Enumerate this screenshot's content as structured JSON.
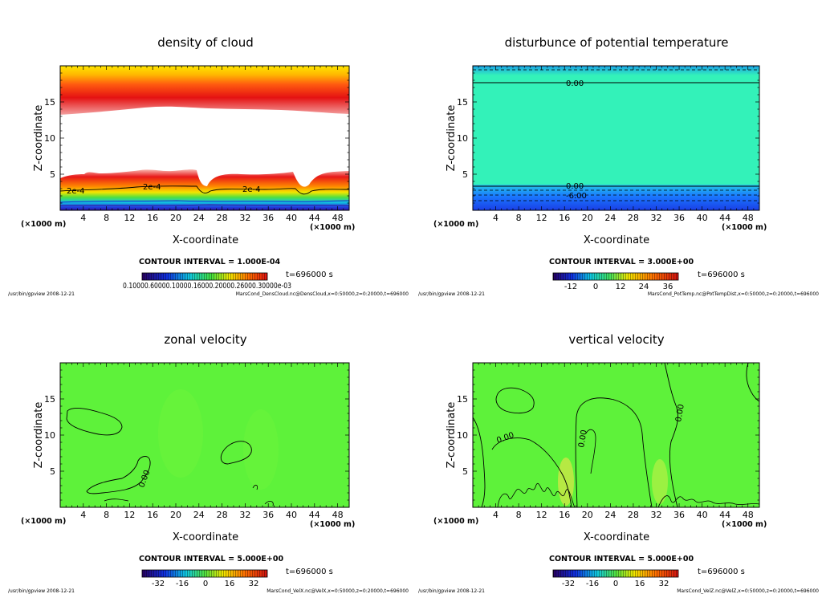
{
  "chart_data": [
    {
      "type": "heatmap",
      "title": "density of cloud",
      "xlabel": "X-coordinate",
      "ylabel": "Z-coordinate",
      "x_unit_label": "(×1000 m)",
      "x_ticks": [
        4,
        8,
        12,
        16,
        20,
        24,
        28,
        32,
        36,
        40,
        44,
        48
      ],
      "y_ticks": [
        5,
        10,
        15
      ],
      "xlim": [
        0,
        50
      ],
      "ylim": [
        0,
        20
      ],
      "contour_labels": [
        "2e-4",
        "2e-4",
        "2e-4"
      ],
      "contour_interval": "CONTOUR INTERVAL = 1.000E-04",
      "time_label": "t=696000  s",
      "colorbar_labels": "0.10000.60000.10000.16000.20000.26000.30000e-03",
      "footer_left": "/usr/bin/gpview   2008-12-21",
      "footer_right": "MarsCond_DensCloud.nc@DensCloud,x=0:50000,z=0:20000,t=696000"
    },
    {
      "type": "heatmap",
      "title": "disturbunce of potential temperature",
      "xlabel": "X-coordinate",
      "ylabel": "Z-coordinate",
      "x_unit_label": "(×1000 m)",
      "x_ticks": [
        4,
        8,
        12,
        16,
        20,
        24,
        28,
        32,
        36,
        40,
        44,
        48
      ],
      "y_ticks": [
        5,
        10,
        15
      ],
      "xlim": [
        0,
        50
      ],
      "ylim": [
        0,
        20
      ],
      "contour_labels": [
        "0.00",
        "0.00",
        "-6.00"
      ],
      "contour_interval": "CONTOUR INTERVAL = 3.000E+00",
      "time_label": "t=696000  s",
      "colorbar_ticks": [
        "-12",
        "0",
        "12",
        "24",
        "36"
      ],
      "footer_left": "/usr/bin/gpview   2008-12-21",
      "footer_right": "MarsCond_PotTemp.nc@PotTempDist,x=0:50000,z=0:20000,t=696000"
    },
    {
      "type": "heatmap",
      "title": "zonal velocity",
      "xlabel": "X-coordinate",
      "ylabel": "Z-coordinate",
      "x_unit_label": "(×1000 m)",
      "x_ticks": [
        4,
        8,
        12,
        16,
        20,
        24,
        28,
        32,
        36,
        40,
        44,
        48
      ],
      "y_ticks": [
        5,
        10,
        15
      ],
      "xlim": [
        0,
        50
      ],
      "ylim": [
        0,
        20
      ],
      "contour_labels": [
        "0.00"
      ],
      "contour_interval": "CONTOUR INTERVAL = 5.000E+00",
      "time_label": "t=696000  s",
      "colorbar_ticks": [
        "-32",
        "-16",
        "0",
        "16",
        "32"
      ],
      "footer_left": "/usr/bin/gpview   2008-12-21",
      "footer_right": "MarsCond_VelX.nc@VelX,x=0:50000,z=0:20000,t=696000"
    },
    {
      "type": "heatmap",
      "title": "vertical velocity",
      "xlabel": "X-coordinate",
      "ylabel": "Z-coordinate",
      "x_unit_label": "(×1000 m)",
      "x_ticks": [
        4,
        8,
        12,
        16,
        20,
        24,
        28,
        32,
        36,
        40,
        44,
        48
      ],
      "y_ticks": [
        5,
        10,
        15
      ],
      "xlim": [
        0,
        50
      ],
      "ylim": [
        0,
        20
      ],
      "contour_labels": [
        "0.00",
        "0.00",
        "0.00"
      ],
      "contour_interval": "CONTOUR INTERVAL = 5.000E+00",
      "time_label": "t=696000  s",
      "colorbar_ticks": [
        "-32",
        "-16",
        "0",
        "16",
        "32"
      ],
      "footer_left": "/usr/bin/gpview   2008-12-21",
      "footer_right": "MarsCond_VelZ.nc@VelZ,x=0:50000,z=0:20000,t=696000"
    }
  ],
  "colors": {
    "field_green": "#5ef23a",
    "field_turquoise": "#33f2b9",
    "cloud_white": "#ffffff",
    "contour": "#000000"
  }
}
